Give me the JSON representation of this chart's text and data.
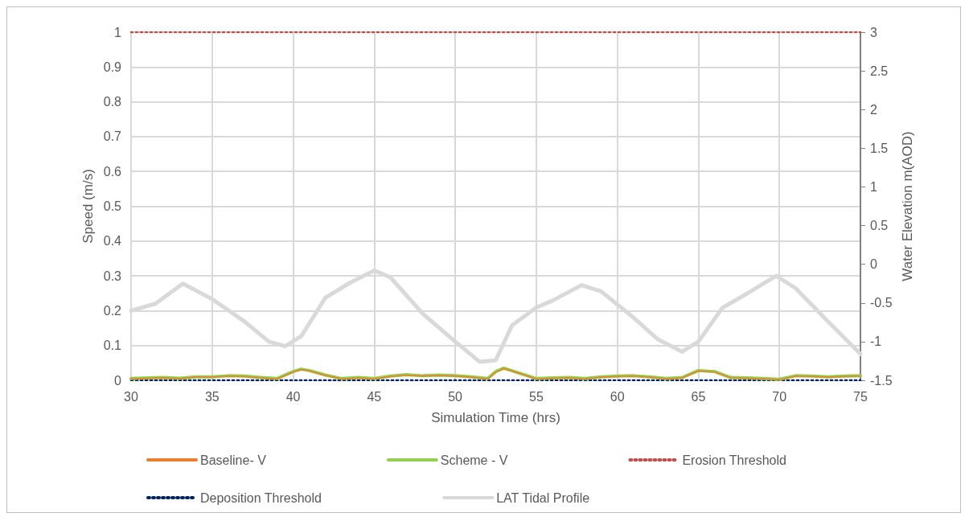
{
  "chart_data": {
    "type": "line",
    "xlabel": "Simulation Time (hrs)",
    "ylabel": "Speed (m/s)",
    "y2label": "Water Elevation m(AOD)",
    "xlim": [
      30,
      75
    ],
    "xticks": [
      30,
      35,
      40,
      45,
      50,
      55,
      60,
      65,
      70,
      75
    ],
    "ylim": [
      0,
      1
    ],
    "yticks": [
      0,
      0.1,
      0.2,
      0.3,
      0.4,
      0.5,
      0.6,
      0.7,
      0.8,
      0.9,
      1
    ],
    "y2lim": [
      -1.5,
      3
    ],
    "y2ticks": [
      -1.5,
      -1,
      -0.5,
      0,
      0.5,
      1,
      1.5,
      2,
      2.5,
      3
    ],
    "grid": true,
    "legend": "bottom",
    "marker": "none",
    "series": [
      {
        "name": "Baseline- V",
        "color": "#ed7d31",
        "x": [
          30,
          31,
          32,
          33,
          34,
          35,
          36,
          37,
          38,
          39,
          40,
          40.5,
          41,
          42,
          43,
          44,
          45,
          46,
          47,
          48,
          49,
          50,
          51,
          52,
          52.5,
          53,
          54,
          55,
          56,
          57,
          58,
          59,
          60,
          61,
          62,
          63,
          64,
          65,
          66,
          67,
          68,
          69,
          70,
          71,
          72,
          73,
          74,
          75
        ],
        "values": [
          0.004,
          0.006,
          0.007,
          0.005,
          0.009,
          0.009,
          0.012,
          0.011,
          0.007,
          0.004,
          0.024,
          0.031,
          0.027,
          0.014,
          0.004,
          0.007,
          0.004,
          0.011,
          0.015,
          0.012,
          0.014,
          0.012,
          0.009,
          0.004,
          0.024,
          0.034,
          0.019,
          0.004,
          0.006,
          0.007,
          0.004,
          0.009,
          0.011,
          0.012,
          0.009,
          0.004,
          0.007,
          0.027,
          0.024,
          0.007,
          0.006,
          0.004,
          0.002,
          0.012,
          0.011,
          0.009,
          0.011,
          0.012
        ]
      },
      {
        "name": "Scheme - V",
        "color": "#92d050",
        "x": [
          30,
          31,
          32,
          33,
          34,
          35,
          36,
          37,
          38,
          39,
          40,
          40.5,
          41,
          42,
          43,
          44,
          45,
          46,
          47,
          48,
          49,
          50,
          51,
          52,
          52.5,
          53,
          54,
          55,
          56,
          57,
          58,
          59,
          60,
          61,
          62,
          63,
          64,
          65,
          66,
          67,
          68,
          69,
          70,
          71,
          72,
          73,
          74,
          75
        ],
        "values": [
          0.005,
          0.007,
          0.008,
          0.006,
          0.01,
          0.01,
          0.013,
          0.012,
          0.008,
          0.005,
          0.025,
          0.032,
          0.028,
          0.015,
          0.005,
          0.008,
          0.005,
          0.012,
          0.016,
          0.013,
          0.015,
          0.013,
          0.01,
          0.005,
          0.025,
          0.035,
          0.02,
          0.005,
          0.007,
          0.008,
          0.005,
          0.01,
          0.012,
          0.013,
          0.01,
          0.005,
          0.008,
          0.028,
          0.025,
          0.008,
          0.007,
          0.005,
          0.003,
          0.013,
          0.012,
          0.01,
          0.012,
          0.013
        ]
      },
      {
        "name": "Erosion Threshold",
        "color": "#c0504d",
        "line_style": "dotted",
        "x": [
          30,
          75
        ],
        "values": [
          1,
          1
        ]
      },
      {
        "name": "Deposition Threshold",
        "color": "#002060",
        "line_style": "dotted",
        "x": [
          30,
          75
        ],
        "values": [
          0,
          0
        ]
      },
      {
        "name": "LAT Tidal Profile",
        "color": "#d9d9d9",
        "axis": "y2",
        "x": [
          30,
          31.5,
          33.2,
          35,
          37,
          38.5,
          39.5,
          40.5,
          42,
          43.5,
          45,
          46,
          48,
          50,
          51.5,
          52.5,
          53.5,
          55,
          56,
          57.8,
          59,
          61,
          62.5,
          64,
          65,
          66.5,
          68,
          69.8,
          71,
          73,
          75
        ],
        "values": [
          -0.6,
          -0.51,
          -0.25,
          -0.45,
          -0.74,
          -1.0,
          -1.06,
          -0.93,
          -0.43,
          -0.24,
          -0.08,
          -0.17,
          -0.64,
          -1.0,
          -1.26,
          -1.24,
          -0.79,
          -0.56,
          -0.47,
          -0.27,
          -0.35,
          -0.69,
          -0.97,
          -1.13,
          -1.0,
          -0.56,
          -0.38,
          -0.15,
          -0.31,
          -0.74,
          -1.16
        ]
      }
    ]
  }
}
